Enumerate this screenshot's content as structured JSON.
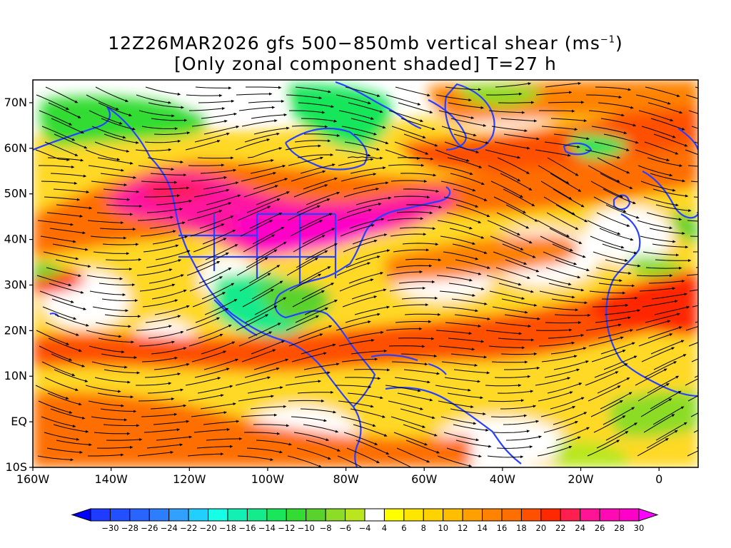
{
  "title": {
    "line1_prefix": "12Z26MAR2026 gfs 500−850mb vertical shear (ms",
    "line1_exp": "−1",
    "line1_suffix": ")",
    "line2": "[Only zonal component shaded] T=27 h"
  },
  "axes": {
    "lat_labels": [
      "70N",
      "60N",
      "50N",
      "40N",
      "30N",
      "20N",
      "10N",
      "EQ",
      "10S"
    ],
    "lat_values": [
      70,
      60,
      50,
      40,
      30,
      20,
      10,
      0,
      -10
    ],
    "lon_labels": [
      "160W",
      "140W",
      "120W",
      "100W",
      "80W",
      "60W",
      "40W",
      "20W",
      "0"
    ],
    "lon_values": [
      -160,
      -140,
      -120,
      -100,
      -80,
      -60,
      -40,
      -20,
      0
    ],
    "lon_range": [
      -160,
      10
    ],
    "lat_range": [
      -10,
      75
    ]
  },
  "colorbar": {
    "labels": [
      "−30",
      "−28",
      "−26",
      "−24",
      "−22",
      "−20",
      "−18",
      "−16",
      "−14",
      "−12",
      "−10",
      "−8",
      "−6",
      "−4",
      "4",
      "6",
      "8",
      "10",
      "12",
      "14",
      "16",
      "18",
      "20",
      "22",
      "24",
      "26",
      "28",
      "30"
    ],
    "colors": [
      "#1e3cff",
      "#2350ff",
      "#2864ff",
      "#2d7dff",
      "#32a0ff",
      "#22d0ff",
      "#16ffe6",
      "#12f0b4",
      "#14eb8c",
      "#19e65a",
      "#32dc32",
      "#5ad22d",
      "#8cdc28",
      "#b9e61e",
      "#ffffff",
      "#ffff00",
      "#ffe600",
      "#ffd200",
      "#ffbe00",
      "#ffa000",
      "#ff8200",
      "#ff6e00",
      "#ff5000",
      "#ff2800",
      "#ff1e50",
      "#ff1496",
      "#ff0ab4",
      "#ff00c8"
    ],
    "left_arrow_color": "#0000ff",
    "right_arrow_color": "#ff00ff"
  },
  "style": {
    "coast_color": "#2840ff",
    "streamline_color": "#000000",
    "frame_color": "#000000"
  }
}
